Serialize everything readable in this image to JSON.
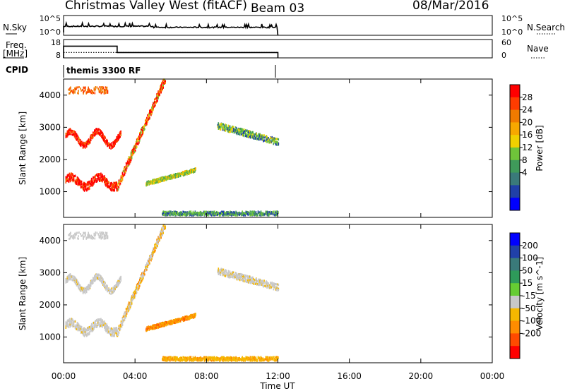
{
  "header": {
    "station": "Christmas Valley West (fitACF)",
    "beam": "Beam 03",
    "date": "08/Mar/2016"
  },
  "side_labels": {
    "nsky": "N.Sky",
    "freq_line1": "Freq.",
    "freq_line2": "[MHz]",
    "cpid": "CPID",
    "nsearch": "N.Search",
    "nave": "Nave"
  },
  "cpid_text": "themis 3300 RF",
  "colors": {
    "power_scale": [
      "#0000ff",
      "#2040a8",
      "#3a7a7a",
      "#3f9a5a",
      "#6fc43a",
      "#f0d000",
      "#f7a800",
      "#f07a00",
      "#ff3c00",
      "#ff0000"
    ],
    "velocity_scale": [
      "#ff0000",
      "#ff4a00",
      "#ff8c00",
      "#f5b800",
      "#c8c8c8",
      "#66cc33",
      "#2e9a5a",
      "#3a7a7a",
      "#2040a8",
      "#0000ff"
    ]
  },
  "chart_data": [
    {
      "panel": "nsky-nsearch",
      "type": "line",
      "y_left_ticks": [
        "10^5",
        "10^0"
      ],
      "y_right_ticks": [
        "10^5",
        "10^0"
      ],
      "series": []
    },
    {
      "panel": "freq-nave",
      "type": "line",
      "y_left_ticks": [
        "18",
        "8"
      ],
      "y_right_ticks": [
        "60",
        "0"
      ],
      "series": [
        {
          "values": [
            [
              0,
              15
            ],
            [
              3,
              15
            ],
            [
              3,
              10
            ],
            [
              12,
              10
            ]
          ]
        },
        {
          "values": [
            [
              0,
              21
            ],
            [
              12,
              21
            ]
          ]
        }
      ]
    },
    {
      "panel": "power",
      "type": "heatmap",
      "xlabel": "",
      "ylabel": "Slant Range [km]",
      "y_ticks": [
        1000,
        2000,
        3000,
        4000
      ],
      "ylim": [
        200,
        4500
      ],
      "colorbar_label": "Power [dB]",
      "colorbar_ticks": [
        "28",
        "24",
        "20",
        "16",
        "12",
        "8",
        "4"
      ]
    },
    {
      "panel": "velocity",
      "type": "heatmap",
      "xlabel": "Time UT",
      "ylabel": "Slant Range [km]",
      "y_ticks": [
        1000,
        2000,
        3000,
        4000
      ],
      "ylim": [
        200,
        4500
      ],
      "x_ticks": [
        "00:00",
        "04:00",
        "08:00",
        "12:00",
        "16:00",
        "20:00",
        "00:00"
      ],
      "xlim": [
        "00:00",
        "24:00"
      ],
      "colorbar_label": "Velocity [m s^-1]",
      "colorbar_ticks": [
        "200",
        "100",
        "50",
        "15",
        "-15",
        "-50",
        "-100",
        "-200"
      ]
    }
  ]
}
